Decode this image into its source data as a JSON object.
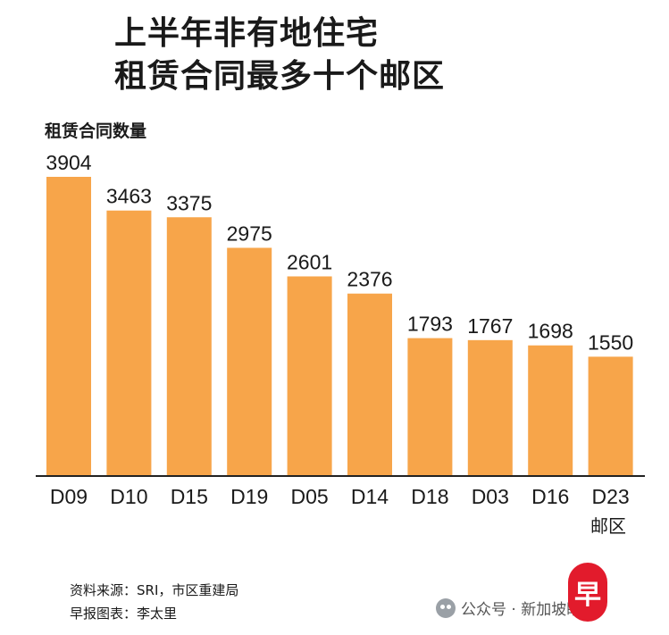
{
  "title_lines": [
    "上半年非有地住宅",
    "租赁合同最多十个邮区"
  ],
  "chart_data": {
    "type": "bar",
    "title": "上半年非有地住宅租赁合同最多十个邮区",
    "ylabel": "租赁合同数量",
    "xlabel": "邮区",
    "categories": [
      "D09",
      "D10",
      "D15",
      "D19",
      "D05",
      "D14",
      "D18",
      "D03",
      "D16",
      "D23"
    ],
    "values": [
      3904,
      3463,
      3375,
      2975,
      2601,
      2376,
      1793,
      1767,
      1698,
      1550
    ],
    "ylim": [
      0,
      3904
    ],
    "grid": false,
    "bar_color": "#f7a54a"
  },
  "source_lines": [
    "资料来源：SRI，市区重建局",
    "早报图表：李太里"
  ],
  "watermark": {
    "text": "公众号 · 新加坡眼家",
    "icon": "wechat-icon"
  },
  "logo": {
    "text": "早",
    "color": "#e21b2c"
  }
}
